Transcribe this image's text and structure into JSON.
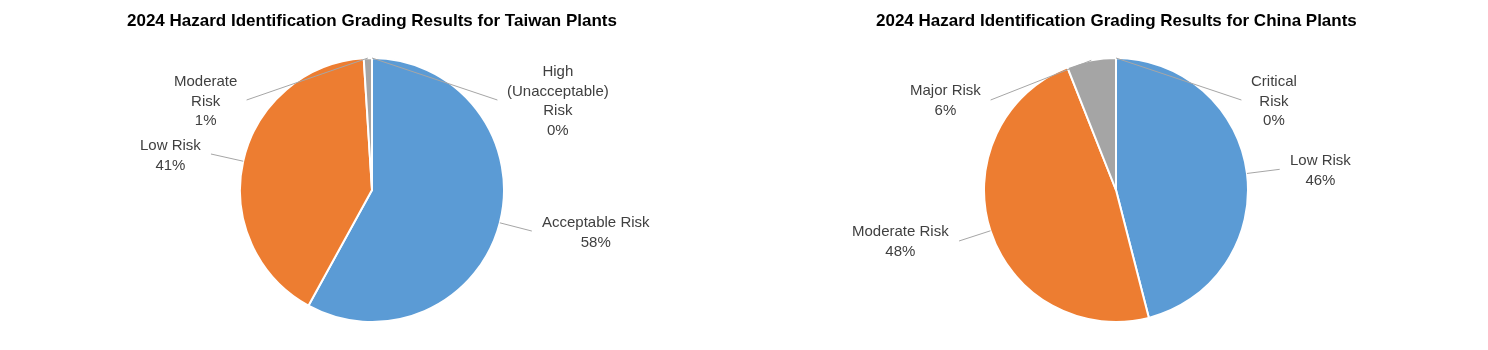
{
  "chart_data": [
    {
      "type": "pie",
      "title": "2024 Hazard Identification Grading Results for Taiwan Plants",
      "categories": [
        "Acceptable Risk",
        "Low Risk",
        "Moderate Risk",
        "High (Unacceptable) Risk"
      ],
      "values": [
        58,
        41,
        1,
        0
      ],
      "value_labels": [
        "58%",
        "41%",
        "1%",
        "0%"
      ],
      "colors": [
        "#5b9bd5",
        "#ed7d31",
        "#a5a5a5",
        "#ffc000"
      ],
      "legend": false
    },
    {
      "type": "pie",
      "title": "2024 Hazard Identification Grading Results for China Plants",
      "categories": [
        "Low Risk",
        "Moderate Risk",
        "Major Risk",
        "Critical Risk"
      ],
      "values": [
        46,
        48,
        6,
        0
      ],
      "value_labels": [
        "46%",
        "48%",
        "6%",
        "0%"
      ],
      "colors": [
        "#5b9bd5",
        "#ed7d31",
        "#a5a5a5",
        "#ffc000"
      ],
      "legend": false
    }
  ]
}
